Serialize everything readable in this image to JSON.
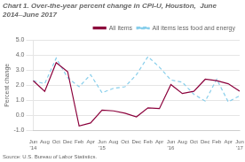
{
  "chart_data": {
    "type": "line",
    "title": "Chart 1. Over-the-year percent change in CPI-U, Houston,  June 2014–June 2017",
    "ylabel": "Percent change",
    "annotations": [
      "Source: U.S. Bureau of Labor Statistics."
    ],
    "categories": [
      "Jun\n'14",
      "Aug",
      "Oct",
      "Dec",
      "Feb",
      "Apr",
      "Jun\n'15",
      "Aug",
      "Oct",
      "Dec",
      "Feb",
      "Apr",
      "Jun\n'16",
      "Aug",
      "Oct",
      "Dec",
      "Feb",
      "Apr",
      "Jun\n'17"
    ],
    "series": [
      {
        "name": "All items",
        "color": "#8B003B",
        "line_style": "solid",
        "values": [
          2.3,
          1.6,
          3.5,
          2.9,
          -0.7,
          -0.5,
          0.35,
          0.3,
          0.15,
          -0.1,
          0.5,
          0.45,
          2.05,
          1.45,
          1.6,
          2.4,
          2.3,
          2.1,
          1.6
        ]
      },
      {
        "name": "All items less food and energy",
        "color": "#87CEEB",
        "line_style": "dashed",
        "values": [
          2.3,
          2.1,
          3.8,
          2.5,
          1.9,
          2.7,
          1.5,
          1.8,
          1.9,
          2.7,
          3.9,
          3.2,
          2.35,
          2.2,
          1.4,
          0.95,
          2.4,
          0.9,
          1.3
        ]
      }
    ],
    "ylim": [
      -1.0,
      5.0
    ],
    "yticks": [
      {
        "value": -1.0,
        "label": "-1.0"
      },
      {
        "value": 0.0,
        "label": "0.0"
      },
      {
        "value": 1.0,
        "label": "1.0"
      },
      {
        "value": 2.0,
        "label": "2.0"
      },
      {
        "value": 3.0,
        "label": "3.0"
      },
      {
        "value": 4.0,
        "label": "4.0"
      },
      {
        "value": 5.0,
        "label": "5.0"
      }
    ],
    "grid": true,
    "legend": "upper right"
  }
}
